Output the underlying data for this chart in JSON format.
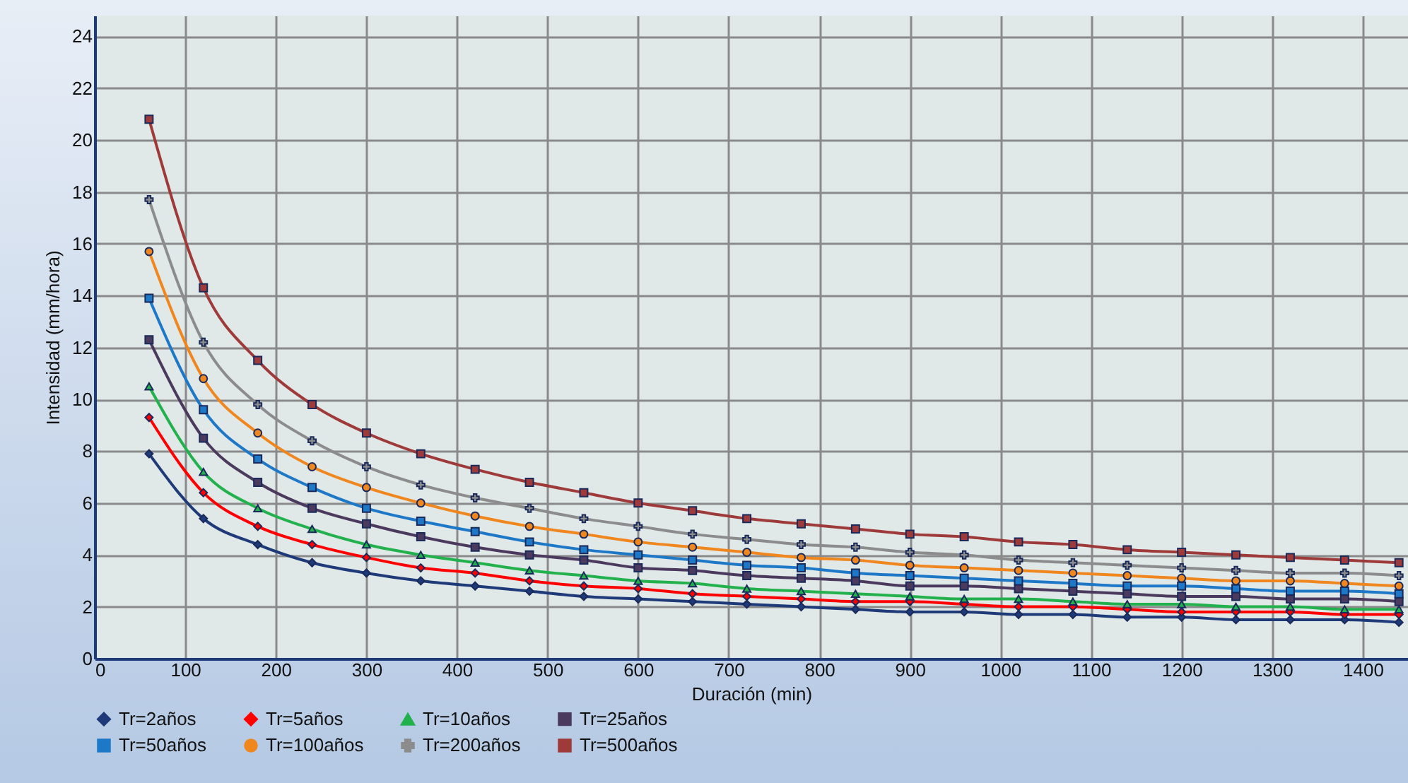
{
  "chart_data": {
    "type": "line",
    "xlabel": "Duración (min)",
    "ylabel": "Intensidad (mm/hora)",
    "x": [
      60,
      120,
      180,
      240,
      300,
      360,
      420,
      480,
      540,
      600,
      660,
      720,
      780,
      840,
      900,
      960,
      1020,
      1080,
      1140,
      1200,
      1260,
      1320,
      1380,
      1440
    ],
    "xlim": [
      0,
      1450
    ],
    "xticks": [
      0,
      100,
      200,
      300,
      400,
      500,
      600,
      700,
      800,
      900,
      1000,
      1100,
      1200,
      1300,
      1400
    ],
    "ylim": [
      0,
      24.8
    ],
    "yticks": [
      0,
      2,
      4,
      6,
      8,
      10,
      12,
      14,
      16,
      18,
      20,
      22,
      24
    ],
    "grid": true,
    "legend": "bottom",
    "series": [
      {
        "name": "Tr=2años",
        "color": "#1f3a78",
        "marker": "diamond",
        "values": [
          7.9,
          5.4,
          4.4,
          3.7,
          3.3,
          3.0,
          2.8,
          2.6,
          2.4,
          2.3,
          2.2,
          2.1,
          2.0,
          1.9,
          1.8,
          1.8,
          1.7,
          1.7,
          1.6,
          1.6,
          1.5,
          1.5,
          1.5,
          1.4
        ]
      },
      {
        "name": "Tr=5años",
        "color": "#ff0000",
        "marker": "diamond",
        "values": [
          9.3,
          6.4,
          5.1,
          4.4,
          3.9,
          3.5,
          3.3,
          3.0,
          2.8,
          2.7,
          2.5,
          2.4,
          2.3,
          2.2,
          2.2,
          2.1,
          2.0,
          2.0,
          1.9,
          1.8,
          1.8,
          1.8,
          1.7,
          1.7
        ]
      },
      {
        "name": "Tr=10años",
        "color": "#22b14c",
        "marker": "triangle",
        "values": [
          10.5,
          7.2,
          5.8,
          5.0,
          4.4,
          4.0,
          3.7,
          3.4,
          3.2,
          3.0,
          2.9,
          2.7,
          2.6,
          2.5,
          2.4,
          2.3,
          2.3,
          2.2,
          2.1,
          2.1,
          2.0,
          2.0,
          1.9,
          1.9
        ]
      },
      {
        "name": "Tr=25años",
        "color": "#4b3a5e",
        "marker": "square",
        "values": [
          12.3,
          8.5,
          6.8,
          5.8,
          5.2,
          4.7,
          4.3,
          4.0,
          3.8,
          3.5,
          3.4,
          3.2,
          3.1,
          3.0,
          2.8,
          2.8,
          2.7,
          2.6,
          2.5,
          2.4,
          2.4,
          2.3,
          2.3,
          2.2
        ]
      },
      {
        "name": "Tr=50años",
        "color": "#1e78c8",
        "marker": "square",
        "values": [
          13.9,
          9.6,
          7.7,
          6.6,
          5.8,
          5.3,
          4.9,
          4.5,
          4.2,
          4.0,
          3.8,
          3.6,
          3.5,
          3.3,
          3.2,
          3.1,
          3.0,
          2.9,
          2.8,
          2.8,
          2.7,
          2.6,
          2.6,
          2.5
        ]
      },
      {
        "name": "Tr=100años",
        "color": "#f0861e",
        "marker": "circle",
        "values": [
          15.7,
          10.8,
          8.7,
          7.4,
          6.6,
          6.0,
          5.5,
          5.1,
          4.8,
          4.5,
          4.3,
          4.1,
          3.9,
          3.8,
          3.6,
          3.5,
          3.4,
          3.3,
          3.2,
          3.1,
          3.0,
          3.0,
          2.9,
          2.8
        ]
      },
      {
        "name": "Tr=200años",
        "color": "#8c8c8c",
        "marker": "cross",
        "values": [
          17.7,
          12.2,
          9.8,
          8.4,
          7.4,
          6.7,
          6.2,
          5.8,
          5.4,
          5.1,
          4.8,
          4.6,
          4.4,
          4.3,
          4.1,
          4.0,
          3.8,
          3.7,
          3.6,
          3.5,
          3.4,
          3.3,
          3.3,
          3.2
        ]
      },
      {
        "name": "Tr=500años",
        "color": "#9e3a3a",
        "marker": "square",
        "values": [
          20.8,
          14.3,
          11.5,
          9.8,
          8.7,
          7.9,
          7.3,
          6.8,
          6.4,
          6.0,
          5.7,
          5.4,
          5.2,
          5.0,
          4.8,
          4.7,
          4.5,
          4.4,
          4.2,
          4.1,
          4.0,
          3.9,
          3.8,
          3.7
        ]
      }
    ]
  }
}
